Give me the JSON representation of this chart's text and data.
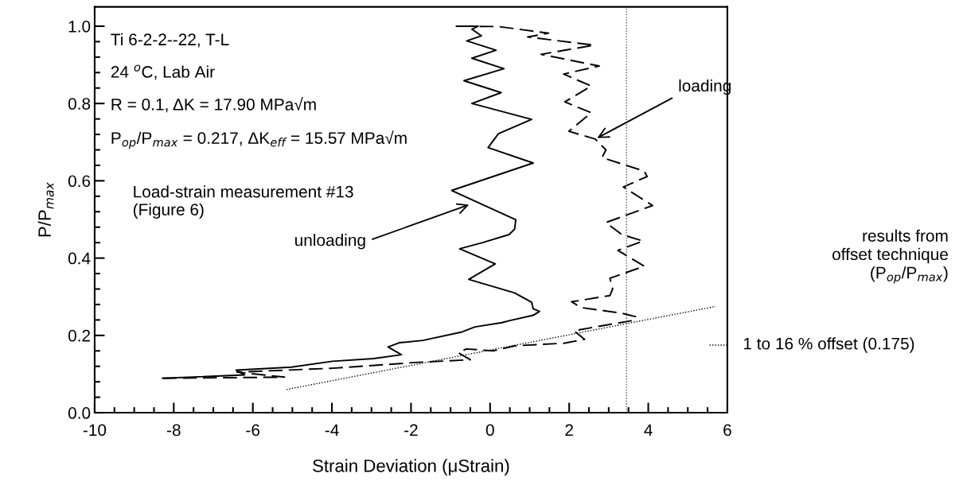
{
  "chart_data": {
    "type": "line",
    "xlabel": "Strain Deviation (μStrain)",
    "ylabel": "P/P$_{max}$",
    "xlim": [
      -10,
      6
    ],
    "ylim": [
      0,
      1.05
    ],
    "xticks": [
      -10,
      -8,
      -6,
      -4,
      -2,
      0,
      2,
      4,
      6
    ],
    "yticks": [
      {
        "value": 0,
        "label": "0.0"
      },
      {
        "value": 0.2,
        "label": "0.2"
      },
      {
        "value": 0.4,
        "label": "0.4"
      },
      {
        "value": 0.6,
        "label": "0.6"
      },
      {
        "value": 0.8,
        "label": "0.8"
      },
      {
        "value": 1.0,
        "label": "1.0"
      }
    ],
    "grid": false,
    "legend": false,
    "series": [
      {
        "color": "#000000",
        "line_style": "solid",
        "x": [
          -0.85,
          -0.3,
          -0.46,
          -0.22,
          -0.59,
          0.15,
          -0.46,
          0.35,
          -0.66,
          0.28,
          -0.46,
          1.05,
          0.21,
          -0.05,
          1.09,
          -0.97,
          0.65,
          0.62,
          0.48,
          -0.19,
          -0.77,
          0.13,
          -0.54,
          0.62,
          1.05,
          1.09,
          1.25,
          1.09,
          0.48,
          0.3,
          -0.38,
          -0.71,
          -1.7,
          -2.3,
          -2.58,
          -2.24,
          -2.95,
          -3.99,
          -5.03,
          -6.42,
          -6.21,
          -8.28
        ],
        "values": [
          1.0,
          1.0,
          0.992,
          0.975,
          0.962,
          0.938,
          0.917,
          0.89,
          0.859,
          0.828,
          0.8,
          0.759,
          0.722,
          0.686,
          0.646,
          0.575,
          0.499,
          0.475,
          0.461,
          0.44,
          0.424,
          0.385,
          0.345,
          0.31,
          0.286,
          0.269,
          0.262,
          0.252,
          0.238,
          0.233,
          0.222,
          0.209,
          0.187,
          0.181,
          0.17,
          0.15,
          0.14,
          0.133,
          0.118,
          0.11,
          0.098,
          0.089
        ]
      },
      {
        "color": "#000000",
        "line_style": "dashed",
        "x": [
          -8.28,
          -5.2,
          -6.4,
          -4.0,
          -2.7,
          -1.9,
          -0.5,
          -0.8,
          -0.6,
          0.08,
          0.62,
          1.89,
          2.39,
          2.12,
          2.5,
          3.57,
          3.7,
          3.3,
          2.3,
          2.06,
          3.03,
          3.1,
          3.03,
          3.9,
          3.23,
          3.87,
          3.33,
          2.93,
          4.11,
          3.37,
          3.97,
          3.9,
          2.83,
          2.93,
          2.66,
          1.99,
          2.56,
          1.89,
          2.56,
          1.86,
          2.76,
          1.29,
          2.63,
          0.95,
          1.48,
          0.21,
          -0.87
        ],
        "values": [
          0.089,
          0.092,
          0.105,
          0.115,
          0.124,
          0.13,
          0.137,
          0.155,
          0.165,
          0.16,
          0.173,
          0.18,
          0.19,
          0.212,
          0.219,
          0.238,
          0.248,
          0.258,
          0.272,
          0.287,
          0.303,
          0.32,
          0.348,
          0.379,
          0.42,
          0.444,
          0.461,
          0.492,
          0.536,
          0.584,
          0.611,
          0.625,
          0.66,
          0.68,
          0.708,
          0.728,
          0.776,
          0.804,
          0.845,
          0.876,
          0.897,
          0.927,
          0.951,
          0.972,
          0.982,
          0.999,
          1.0
        ]
      },
      {
        "color": "#000000",
        "line_style": "dotted",
        "x": [
          -5.15,
          5.7
        ],
        "values": [
          0.06,
          0.275
        ]
      },
      {
        "color": "#000000",
        "line_style": "dotted",
        "x": [
          5.55,
          6.0
        ],
        "values": [
          0.175,
          0.175
        ]
      }
    ],
    "ref_lines": [
      {
        "axis": "x",
        "value": 3.45,
        "color": "#555555",
        "line_style": "dotted"
      }
    ],
    "annotations": [
      "Ti 6-2-2--22, T-L",
      "24 $^{o}$C, Lab Air",
      "R = 0.1, ΔK = 17.90 MPa√m",
      "P$_{op}$/P$_{max}$ = 0.217, ΔK$_{eff}$ = 15.57 MPa√m",
      "Load-strain measurement #13\n(Figure 6)",
      "results from\noffset technique\n(P$_{op}$/P$_{max}$)",
      {
        "text": "1 to 16 % offset (0.175)",
        "x": 6,
        "y": 0.175
      },
      {
        "text": "unloading",
        "x": -0.48,
        "y": 0.54
      },
      {
        "text": "loading",
        "x": 2.66,
        "y": 0.708
      }
    ]
  }
}
